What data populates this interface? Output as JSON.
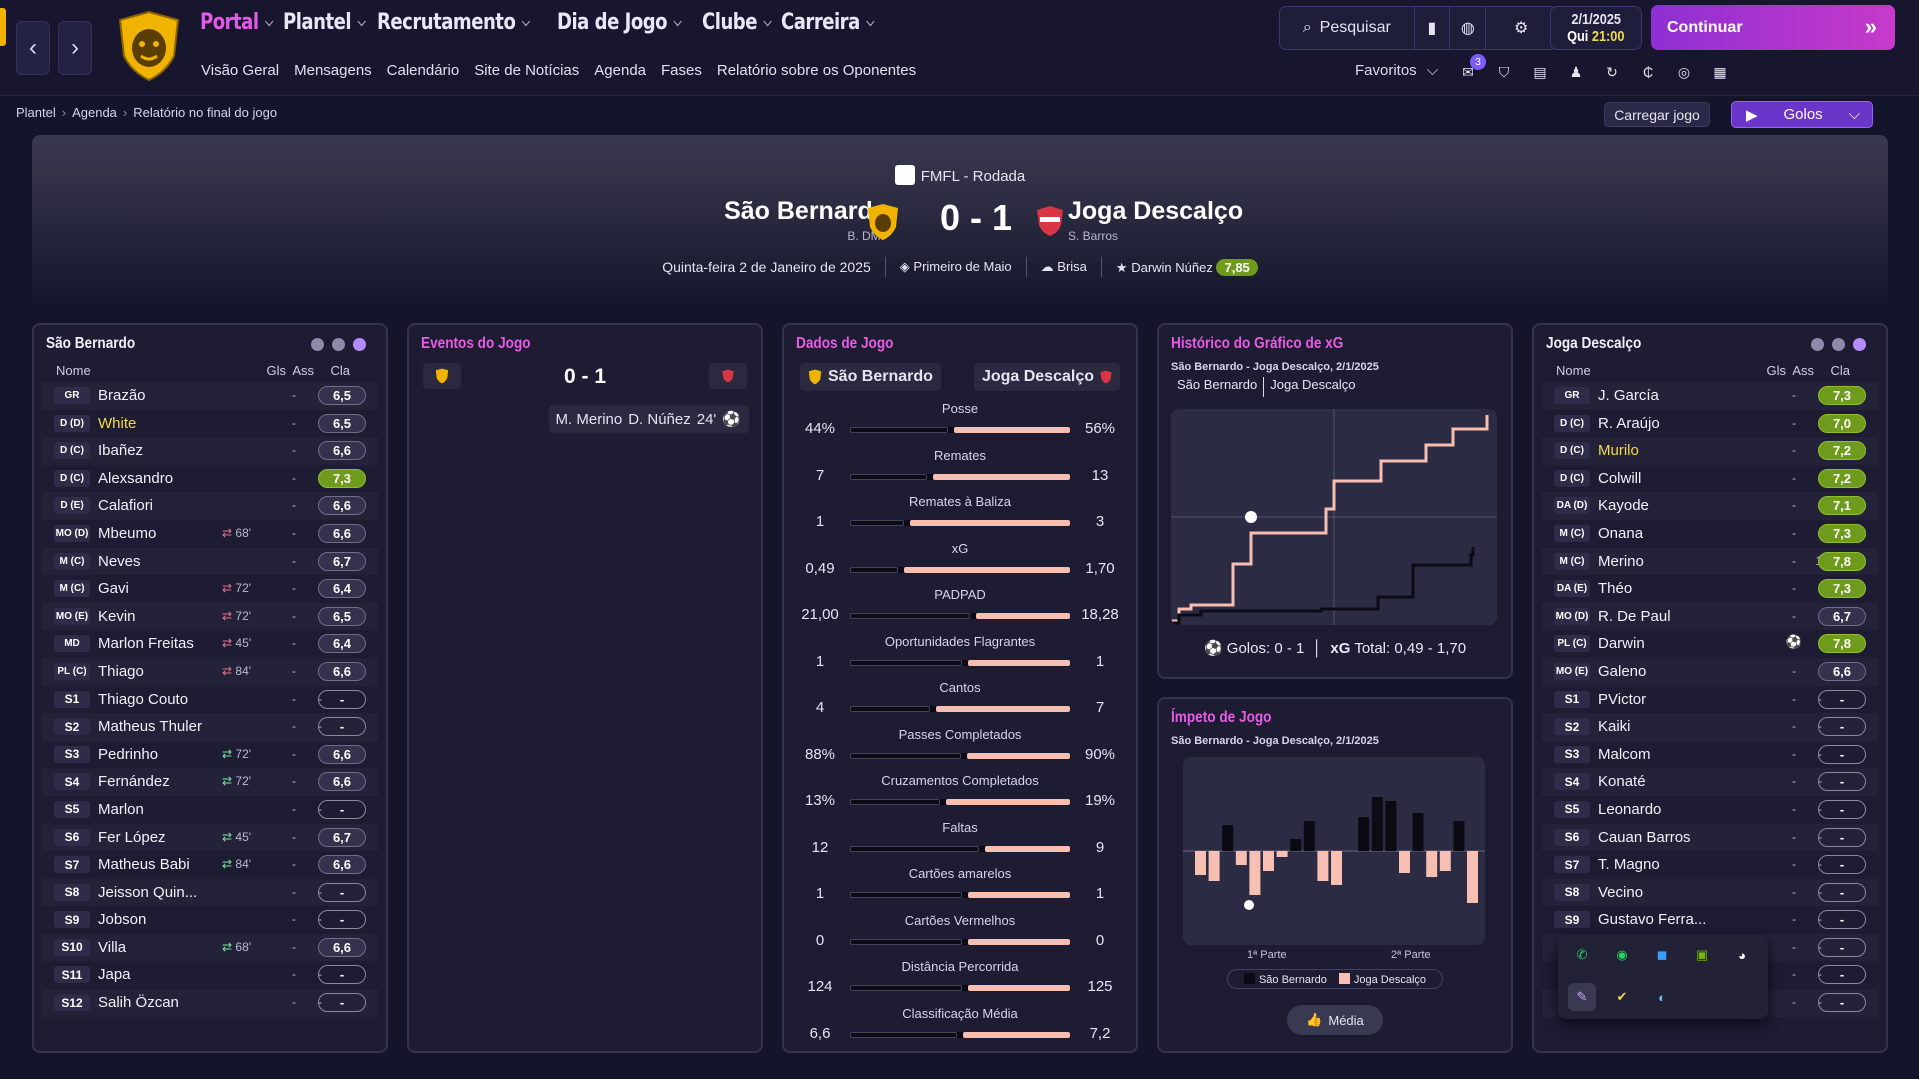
{
  "topbar": {
    "nav": [
      {
        "label": "Portal",
        "active": true
      },
      {
        "label": "Plantel"
      },
      {
        "label": "Recrutamento"
      },
      {
        "label": "Dia de Jogo"
      },
      {
        "label": "Clube"
      },
      {
        "label": "Carreira"
      }
    ],
    "subnav": [
      "Visão Geral",
      "Mensagens",
      "Calendário",
      "Site de Notícias",
      "Agenda",
      "Fases",
      "Relatório sobre os Oponentes"
    ],
    "search_label": "Pesquisar",
    "date": "2/1/2025",
    "day": "Qui",
    "time": "21:00",
    "continue_label": "Continuar",
    "favorites_label": "Favoritos",
    "notif_count": "3"
  },
  "breadcrumb": [
    "Plantel",
    "Agenda",
    "Relatório no final do jogo"
  ],
  "actions": {
    "load_game": "Carregar jogo",
    "goals": "Golos"
  },
  "match": {
    "competition": "FMFL - Rodada",
    "home": "São Bernardo",
    "home_manager": "B. DMF",
    "away": "Joga Descalço",
    "away_manager": "S. Barros",
    "score": "0 - 1",
    "date": "Quinta-feira 2 de Janeiro de 2025",
    "stadium": "Primeiro de Maio",
    "weather": "Brisa",
    "potm": "Darwin Núñez",
    "potm_rating": "7,85"
  },
  "home_panel": {
    "title": "São Bernardo",
    "headers": {
      "name": "Nome",
      "gls": "Gls",
      "ass": "Ass",
      "cla": "Cla"
    },
    "players": [
      {
        "pos": "GR",
        "name": "Brazão",
        "gls": "-",
        "ass": "-",
        "rating": "6,5"
      },
      {
        "pos": "D (D)",
        "name": "White",
        "hl": true,
        "gls": "-",
        "ass": "-",
        "rating": "6,5"
      },
      {
        "pos": "D (C)",
        "name": "Ibañez",
        "gls": "-",
        "ass": "-",
        "rating": "6,6"
      },
      {
        "pos": "D (C)",
        "name": "Alexsandro",
        "gls": "-",
        "ass": "-",
        "rating": "7,3",
        "good": true
      },
      {
        "pos": "D (E)",
        "name": "Calafiori",
        "gls": "-",
        "ass": "-",
        "rating": "6,6"
      },
      {
        "pos": "MO (D)",
        "name": "Mbeumo",
        "sub_time": "68'",
        "sub_dir": "off",
        "gls": "-",
        "ass": "-",
        "rating": "6,6"
      },
      {
        "pos": "M (C)",
        "name": "Neves",
        "gls": "-",
        "ass": "-",
        "rating": "6,7"
      },
      {
        "pos": "M (C)",
        "name": "Gavi",
        "sub_time": "72'",
        "sub_dir": "off",
        "gls": "-",
        "ass": "-",
        "rating": "6,4"
      },
      {
        "pos": "MO (E)",
        "name": "Kevin",
        "sub_time": "72'",
        "sub_dir": "off",
        "gls": "-",
        "ass": "-",
        "rating": "6,5"
      },
      {
        "pos": "MD",
        "name": "Marlon Freitas",
        "sub_time": "45'",
        "sub_dir": "off",
        "gls": "-",
        "ass": "-",
        "rating": "6,4"
      },
      {
        "pos": "PL (C)",
        "name": "Thiago",
        "sub_time": "84'",
        "sub_dir": "off",
        "gls": "-",
        "ass": "-",
        "rating": "6,6"
      },
      {
        "pos": "S1",
        "name": "Thiago Couto",
        "gls": "-",
        "ass": "-",
        "rating": "-"
      },
      {
        "pos": "S2",
        "name": "Matheus Thuler",
        "gls": "-",
        "ass": "-",
        "rating": "-"
      },
      {
        "pos": "S3",
        "name": "Pedrinho",
        "sub_time": "72'",
        "sub_dir": "on",
        "gls": "-",
        "ass": "-",
        "rating": "6,6"
      },
      {
        "pos": "S4",
        "name": "Fernández",
        "sub_time": "72'",
        "sub_dir": "on",
        "gls": "-",
        "ass": "-",
        "rating": "6,6"
      },
      {
        "pos": "S5",
        "name": "Marlon",
        "gls": "-",
        "ass": "-",
        "rating": "-"
      },
      {
        "pos": "S6",
        "name": "Fer López",
        "sub_time": "45'",
        "sub_dir": "on",
        "gls": "-",
        "ass": "-",
        "rating": "6,7"
      },
      {
        "pos": "S7",
        "name": "Matheus Babi",
        "sub_time": "84'",
        "sub_dir": "on",
        "gls": "-",
        "ass": "-",
        "rating": "6,6"
      },
      {
        "pos": "S8",
        "name": "Jeisson Quin...",
        "gls": "-",
        "ass": "-",
        "rating": "-"
      },
      {
        "pos": "S9",
        "name": "Jobson",
        "gls": "-",
        "ass": "-",
        "rating": "-"
      },
      {
        "pos": "S10",
        "name": "Villa",
        "sub_time": "68'",
        "sub_dir": "on",
        "gls": "-",
        "ass": "-",
        "rating": "6,6"
      },
      {
        "pos": "S11",
        "name": "Japa",
        "gls": "-",
        "ass": "-",
        "rating": "-"
      },
      {
        "pos": "S12",
        "name": "Salih Özcan",
        "gls": "-",
        "ass": "-",
        "rating": "-"
      }
    ]
  },
  "events_panel": {
    "title": "Eventos do Jogo",
    "score": "0 - 1",
    "goal_event": {
      "assist": "M. Merino",
      "scorer": "D. Núñez",
      "minute": "24'"
    }
  },
  "stats_panel": {
    "title": "Dados de Jogo",
    "home": "São Bernardo",
    "away": "Joga Descalço",
    "stats": [
      {
        "label": "Posse",
        "home": "44%",
        "away": "56%",
        "h": 44,
        "a": 56
      },
      {
        "label": "Remates",
        "home": "7",
        "away": "13",
        "h": 7,
        "a": 13
      },
      {
        "label": "Remates à Baliza",
        "home": "1",
        "away": "3",
        "h": 1,
        "a": 3
      },
      {
        "label": "xG",
        "home": "0,49",
        "away": "1,70",
        "h": 0.49,
        "a": 1.7
      },
      {
        "label": "PADPAD",
        "home": "21,00",
        "away": "18,28",
        "h": 21.0,
        "a": 18.28
      },
      {
        "label": "Oportunidades Flagrantes",
        "home": "1",
        "away": "1",
        "h": 1,
        "a": 1
      },
      {
        "label": "Cantos",
        "home": "4",
        "away": "7",
        "h": 4,
        "a": 7
      },
      {
        "label": "Passes Completados",
        "home": "88%",
        "away": "90%",
        "h": 88,
        "a": 90
      },
      {
        "label": "Cruzamentos Completados",
        "home": "13%",
        "away": "19%",
        "h": 13,
        "a": 19
      },
      {
        "label": "Faltas",
        "home": "12",
        "away": "9",
        "h": 12,
        "a": 9
      },
      {
        "label": "Cartões amarelos",
        "home": "1",
        "away": "1",
        "h": 1,
        "a": 1
      },
      {
        "label": "Cartões Vermelhos",
        "home": "0",
        "away": "0",
        "h": 0,
        "a": 0
      },
      {
        "label": "Distância Percorrida",
        "home": "124",
        "away": "125",
        "h": 124,
        "a": 125
      },
      {
        "label": "Classificação Média",
        "home": "6,6",
        "away": "7,2",
        "h": 6.6,
        "a": 7.2
      }
    ]
  },
  "xg_panel": {
    "title": "Histórico do Gráfico de xG",
    "subtitle": "São Bernardo - Joga Descalço, 2/1/2025",
    "toggle": [
      "São Bernardo",
      "Joga Descalço"
    ],
    "goals_label": "Golos:",
    "goals_value": "0 - 1",
    "xg_label": "xG",
    "total_label": "Total:",
    "total_value": "0,49  -  1,70"
  },
  "momentum_panel": {
    "title": "Ímpeto de Jogo",
    "subtitle": "São Bernardo - Joga Descalço, 2/1/2025",
    "first_half": "1ª Parte",
    "second_half": "2ª Parte",
    "legend_home": "São Bernardo",
    "legend_away": "Joga Descalço",
    "button": "Média"
  },
  "away_panel": {
    "title": "Joga Descalço",
    "headers": {
      "name": "Nome",
      "gls": "Gls",
      "ass": "Ass",
      "cla": "Cla"
    },
    "players": [
      {
        "pos": "GR",
        "name": "J. García",
        "gls": "-",
        "ass": "-",
        "rating": "7,3",
        "good": true
      },
      {
        "pos": "D (C)",
        "name": "R. Araújo",
        "gls": "-",
        "ass": "-",
        "rating": "7,0",
        "good": true
      },
      {
        "pos": "D (C)",
        "name": "Murilo",
        "hl": true,
        "gls": "-",
        "ass": "-",
        "rating": "7,2",
        "good": true
      },
      {
        "pos": "D (C)",
        "name": "Colwill",
        "gls": "-",
        "ass": "-",
        "rating": "7,2",
        "good": true
      },
      {
        "pos": "DA (D)",
        "name": "Kayode",
        "gls": "-",
        "ass": "-",
        "rating": "7,1",
        "good": true
      },
      {
        "pos": "M (C)",
        "name": "Onana",
        "gls": "-",
        "ass": "-",
        "rating": "7,3",
        "good": true
      },
      {
        "pos": "M (C)",
        "name": "Merino",
        "gls": "-",
        "ass": "1",
        "rating": "7,8",
        "good": true
      },
      {
        "pos": "DA (E)",
        "name": "Théo",
        "gls": "-",
        "ass": "-",
        "rating": "7,3",
        "good": true
      },
      {
        "pos": "MO (D)",
        "name": "R. De Paul",
        "gls": "-",
        "ass": "-",
        "rating": "6,7"
      },
      {
        "pos": "PL (C)",
        "name": "Darwin",
        "goal_icon": true,
        "gls": "",
        "ass": "-",
        "rating": "7,8",
        "good": true
      },
      {
        "pos": "MO (E)",
        "name": "Galeno",
        "gls": "-",
        "ass": "-",
        "rating": "6,6"
      },
      {
        "pos": "S1",
        "name": "PVictor",
        "gls": "-",
        "ass": "-",
        "rating": "-"
      },
      {
        "pos": "S2",
        "name": "Kaiki",
        "gls": "-",
        "ass": "-",
        "rating": "-"
      },
      {
        "pos": "S3",
        "name": "Malcom",
        "gls": "-",
        "ass": "-",
        "rating": "-"
      },
      {
        "pos": "S4",
        "name": "Konaté",
        "gls": "-",
        "ass": "-",
        "rating": "-"
      },
      {
        "pos": "S5",
        "name": "Leonardo",
        "gls": "-",
        "ass": "-",
        "rating": "-"
      },
      {
        "pos": "S6",
        "name": "Cauan Barros",
        "gls": "-",
        "ass": "-",
        "rating": "-"
      },
      {
        "pos": "S7",
        "name": "T. Magno",
        "gls": "-",
        "ass": "-",
        "rating": "-"
      },
      {
        "pos": "S8",
        "name": "Vecino",
        "gls": "-",
        "ass": "-",
        "rating": "-"
      },
      {
        "pos": "S9",
        "name": "Gustavo Ferra...",
        "gls": "-",
        "ass": "-",
        "rating": "-"
      },
      {
        "pos": "",
        "name": "",
        "gls": "-",
        "ass": "-",
        "rating": "-"
      },
      {
        "pos": "",
        "name": "",
        "gls": "-",
        "ass": "-",
        "rating": "-"
      },
      {
        "pos": "",
        "name": "",
        "gls": "-",
        "ass": "-",
        "rating": "-"
      }
    ]
  },
  "colors": {
    "accent": "#e35ae9",
    "continue": "#b13ad0",
    "good_rating": "#6f9b1d",
    "away_bar": "#f6bfb1",
    "home_bar": "#0b0b14"
  }
}
